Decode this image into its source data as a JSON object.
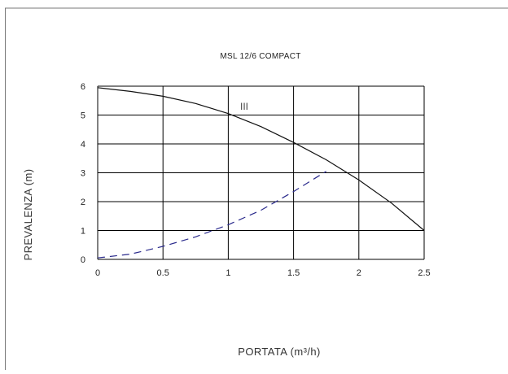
{
  "chart_data": {
    "type": "line",
    "title": "MSL 12/6 COMPACT",
    "xlabel": "PORTATA (m³/h)",
    "ylabel": "PREVALENZA (m)",
    "xlim": [
      0,
      2.5
    ],
    "ylim": [
      0,
      6
    ],
    "x_ticks": [
      "0",
      "0.5",
      "1",
      "1.5",
      "2",
      "2.5"
    ],
    "y_ticks": [
      "0",
      "1",
      "2",
      "3",
      "4",
      "5",
      "6"
    ],
    "grid": true,
    "curve_label": "III",
    "series": [
      {
        "style": "solid",
        "color": "#111111",
        "x": [
          0,
          0.25,
          0.5,
          0.75,
          1.0,
          1.25,
          1.5,
          1.75,
          2.0,
          2.25,
          2.5
        ],
        "y": [
          5.95,
          5.82,
          5.65,
          5.4,
          5.05,
          4.6,
          4.05,
          3.45,
          2.75,
          1.95,
          1.0
        ]
      },
      {
        "style": "dashed",
        "color": "#2a2a8c",
        "x": [
          0,
          0.25,
          0.5,
          0.75,
          1.0,
          1.25,
          1.5,
          1.75
        ],
        "y": [
          0.05,
          0.18,
          0.45,
          0.78,
          1.2,
          1.7,
          2.35,
          3.05
        ]
      }
    ]
  }
}
